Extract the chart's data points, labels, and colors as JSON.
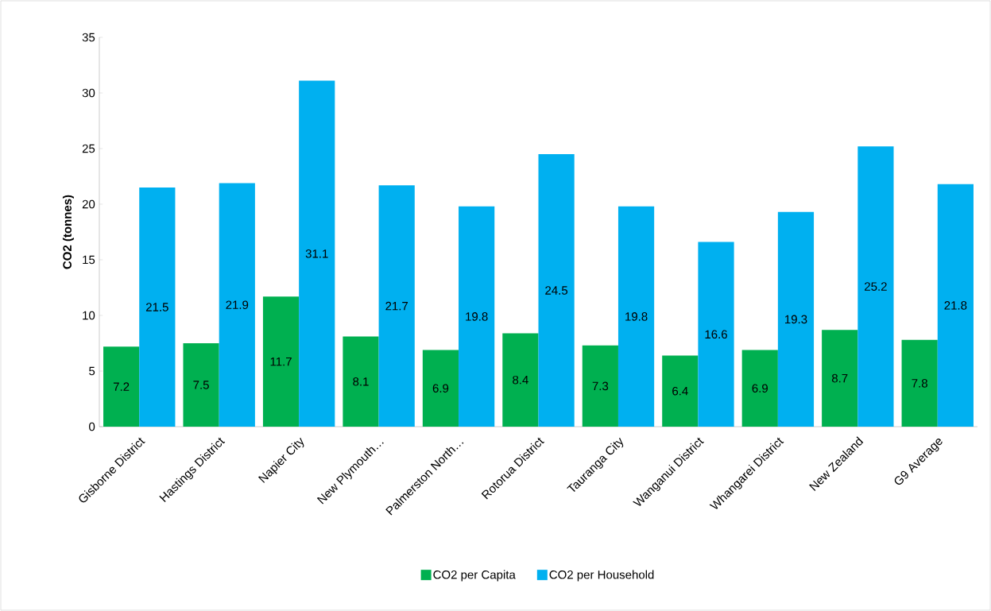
{
  "chart_data": {
    "type": "bar",
    "ylabel": "CO2 (tonnes)",
    "categories": [
      "Gisborne District",
      "Hastings District",
      "Napier City",
      "New Plymouth…",
      "Palmerston North…",
      "Rotorua District",
      "Tauranga City",
      "Wanganui District",
      "Whangarei District",
      "New Zealand",
      "G9 Average"
    ],
    "series": [
      {
        "name": "CO2 per Capita",
        "color": "#00b050",
        "values": [
          7.2,
          7.5,
          11.7,
          8.1,
          6.9,
          8.4,
          7.3,
          6.4,
          6.9,
          8.7,
          7.8
        ]
      },
      {
        "name": "CO2 per Household",
        "color": "#00b0f0",
        "values": [
          21.5,
          21.9,
          31.1,
          21.7,
          19.8,
          24.5,
          19.8,
          16.6,
          19.3,
          25.2,
          21.8
        ]
      }
    ],
    "ylim": [
      0,
      35
    ],
    "yticks": [
      0,
      5,
      10,
      15,
      20,
      25,
      30,
      35
    ],
    "data_labels": true,
    "legend": "bottom",
    "grid": false
  }
}
